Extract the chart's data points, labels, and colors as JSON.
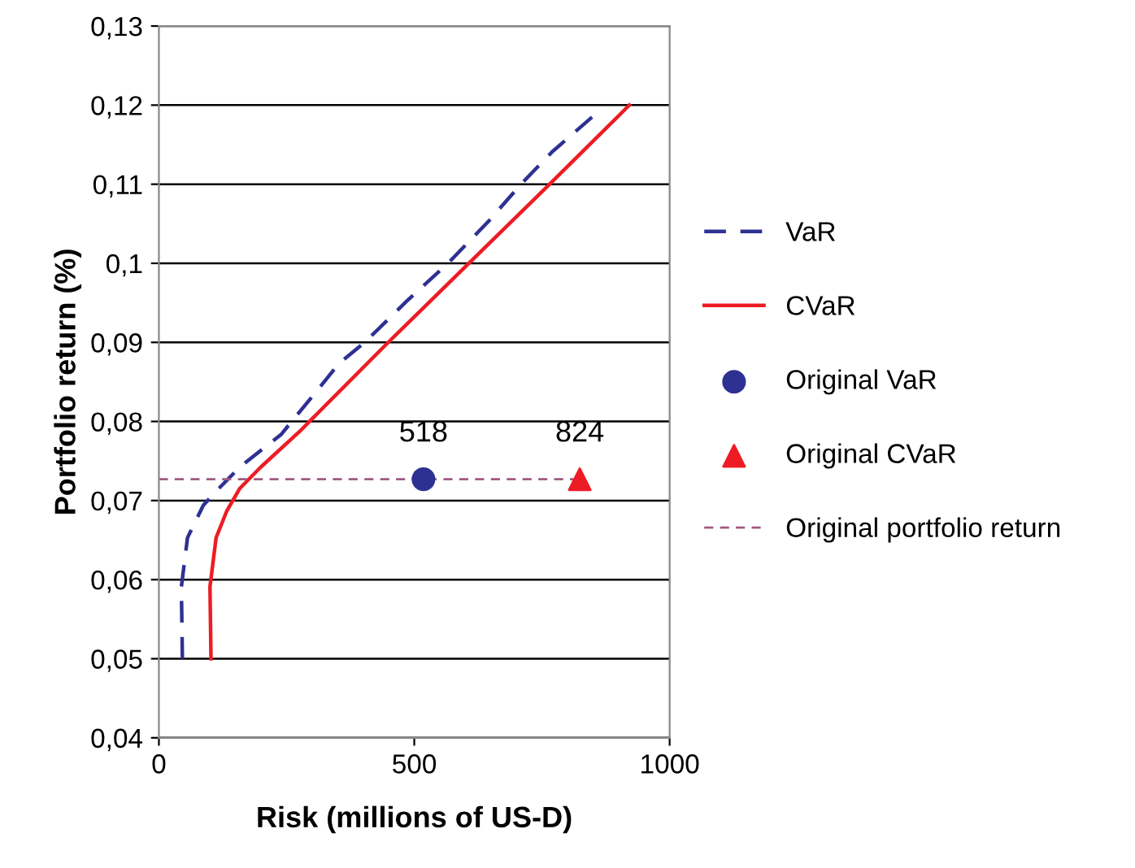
{
  "chart_data": {
    "type": "line",
    "xlabel": "Risk (millions of US-D)",
    "ylabel": "Portfolio return (%)",
    "xlim": [
      0,
      1000
    ],
    "xticks": [
      0,
      500,
      1000
    ],
    "ylim": [
      0.04,
      0.13
    ],
    "yticks": [
      {
        "value": 0.04,
        "label": "0,04"
      },
      {
        "value": 0.05,
        "label": "0,05"
      },
      {
        "value": 0.06,
        "label": "0,06"
      },
      {
        "value": 0.07,
        "label": "0,07"
      },
      {
        "value": 0.08,
        "label": "0,08"
      },
      {
        "value": 0.09,
        "label": "0,09"
      },
      {
        "value": 0.1,
        "label": "0,1"
      },
      {
        "value": 0.11,
        "label": "0,11"
      },
      {
        "value": 0.12,
        "label": "0,12"
      },
      {
        "value": 0.13,
        "label": "0,13"
      }
    ],
    "grid": "y",
    "legend": "right",
    "series": [
      {
        "name": "VaR",
        "line_style": "dashed",
        "color": "#2e3192",
        "x": [
          46,
          44,
          56,
          87,
          117,
          158,
          199,
          240,
          260,
          301,
          352,
          403,
          485,
          566,
          648,
          709,
          770,
          852
        ],
        "values": [
          0.05,
          0.0591,
          0.0653,
          0.0694,
          0.0715,
          0.0742,
          0.0763,
          0.0784,
          0.08,
          0.0832,
          0.0873,
          0.09,
          0.0952,
          0.1,
          0.1055,
          0.11,
          0.1141,
          0.1187
        ]
      },
      {
        "name": "CVaR",
        "line_style": "solid",
        "color": "#ed1c24",
        "x": [
          102,
          100,
          112,
          133,
          158,
          199,
          275,
          301,
          449,
          607,
          765,
          921
        ],
        "values": [
          0.05,
          0.0591,
          0.0653,
          0.0687,
          0.0715,
          0.0742,
          0.0787,
          0.0804,
          0.09,
          0.1,
          0.11,
          0.12
        ]
      },
      {
        "name": "Original VaR",
        "type": "scatter",
        "marker": "circle",
        "color": "#2e3192",
        "x": [
          518
        ],
        "values": [
          0.0727
        ]
      },
      {
        "name": "Original CVaR",
        "type": "scatter",
        "marker": "triangle",
        "color": "#ed1c24",
        "x": [
          824
        ],
        "values": [
          0.0727
        ]
      },
      {
        "name": "Original portfolio return",
        "line_style": "dashed",
        "color": "#a05a80",
        "x": [
          0,
          824
        ],
        "values": [
          0.0727,
          0.0727
        ]
      }
    ],
    "annotations": [
      {
        "text": "518",
        "x": 518,
        "y": 0.0727
      },
      {
        "text": "824",
        "x": 824,
        "y": 0.0727
      }
    ]
  }
}
